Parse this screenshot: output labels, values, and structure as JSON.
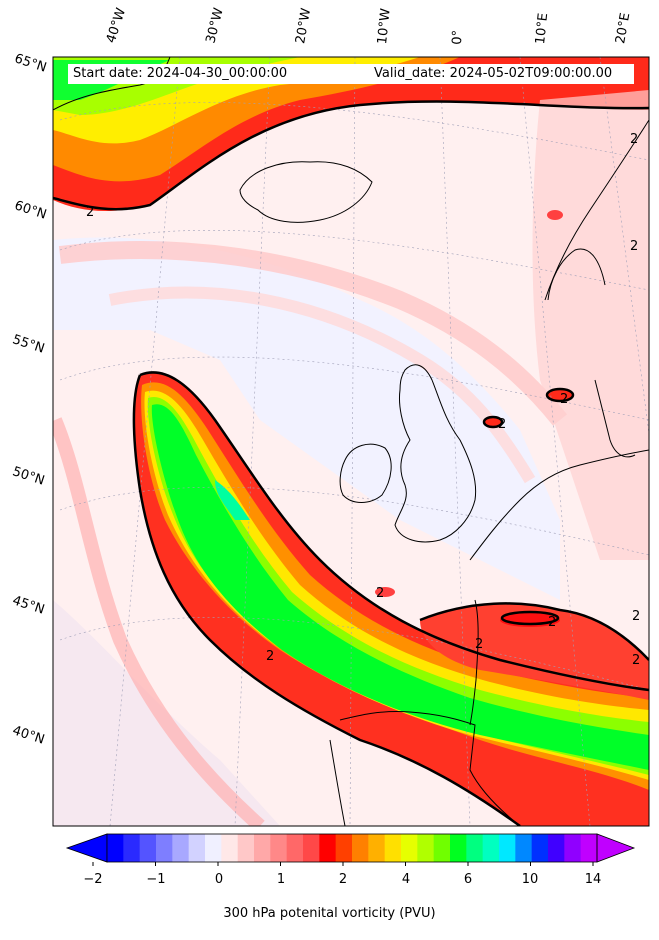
{
  "header": {
    "start_date": "Start date: 2024-04-30_00:00:00",
    "valid_date": "Valid_date: 2024-05-02T09:00:00.00"
  },
  "map": {
    "longitude_labels": [
      "40°W",
      "30°W",
      "20°W",
      "10°W",
      "0°",
      "10°E",
      "20°E"
    ],
    "latitude_labels": [
      "65°N",
      "60°N",
      "55°N",
      "50°N",
      "45°N",
      "40°N"
    ],
    "contour_label": "2",
    "colors": {
      "background": "#f0f0ff",
      "pink_light": "#ffe8e8",
      "pink": "#ffc8c8",
      "red_light": "#ff9a9a",
      "red": "#ff2020",
      "orange": "#ff8a00",
      "yellow": "#ffee00",
      "lime": "#9cff00",
      "green": "#00ff20",
      "cyan": "#00ffa0",
      "blue_light": "#c8c8ff",
      "contour": "#000000",
      "coast": "#000000"
    }
  },
  "colorbar": {
    "label": "300 hPa potenital vorticity (PVU)",
    "tick_labels": [
      "−2",
      "−1",
      "0",
      "1",
      "2",
      "4",
      "6",
      "10",
      "14"
    ],
    "colors": [
      "#0000ff",
      "#2a2aff",
      "#5454ff",
      "#7e7eff",
      "#a8a8ff",
      "#d2d2ff",
      "#f0f0ff",
      "#ffe8e8",
      "#ffc8c8",
      "#ffa8a8",
      "#ff8888",
      "#ff6868",
      "#ff4848",
      "#ff0000",
      "#ff4000",
      "#ff8000",
      "#ffb000",
      "#ffe000",
      "#e6ff00",
      "#b0ff00",
      "#70ff00",
      "#00ff20",
      "#00ff80",
      "#00ffc0",
      "#00e8ff",
      "#0088ff",
      "#0030ff",
      "#4000ff",
      "#9000ff",
      "#c000ff"
    ]
  }
}
